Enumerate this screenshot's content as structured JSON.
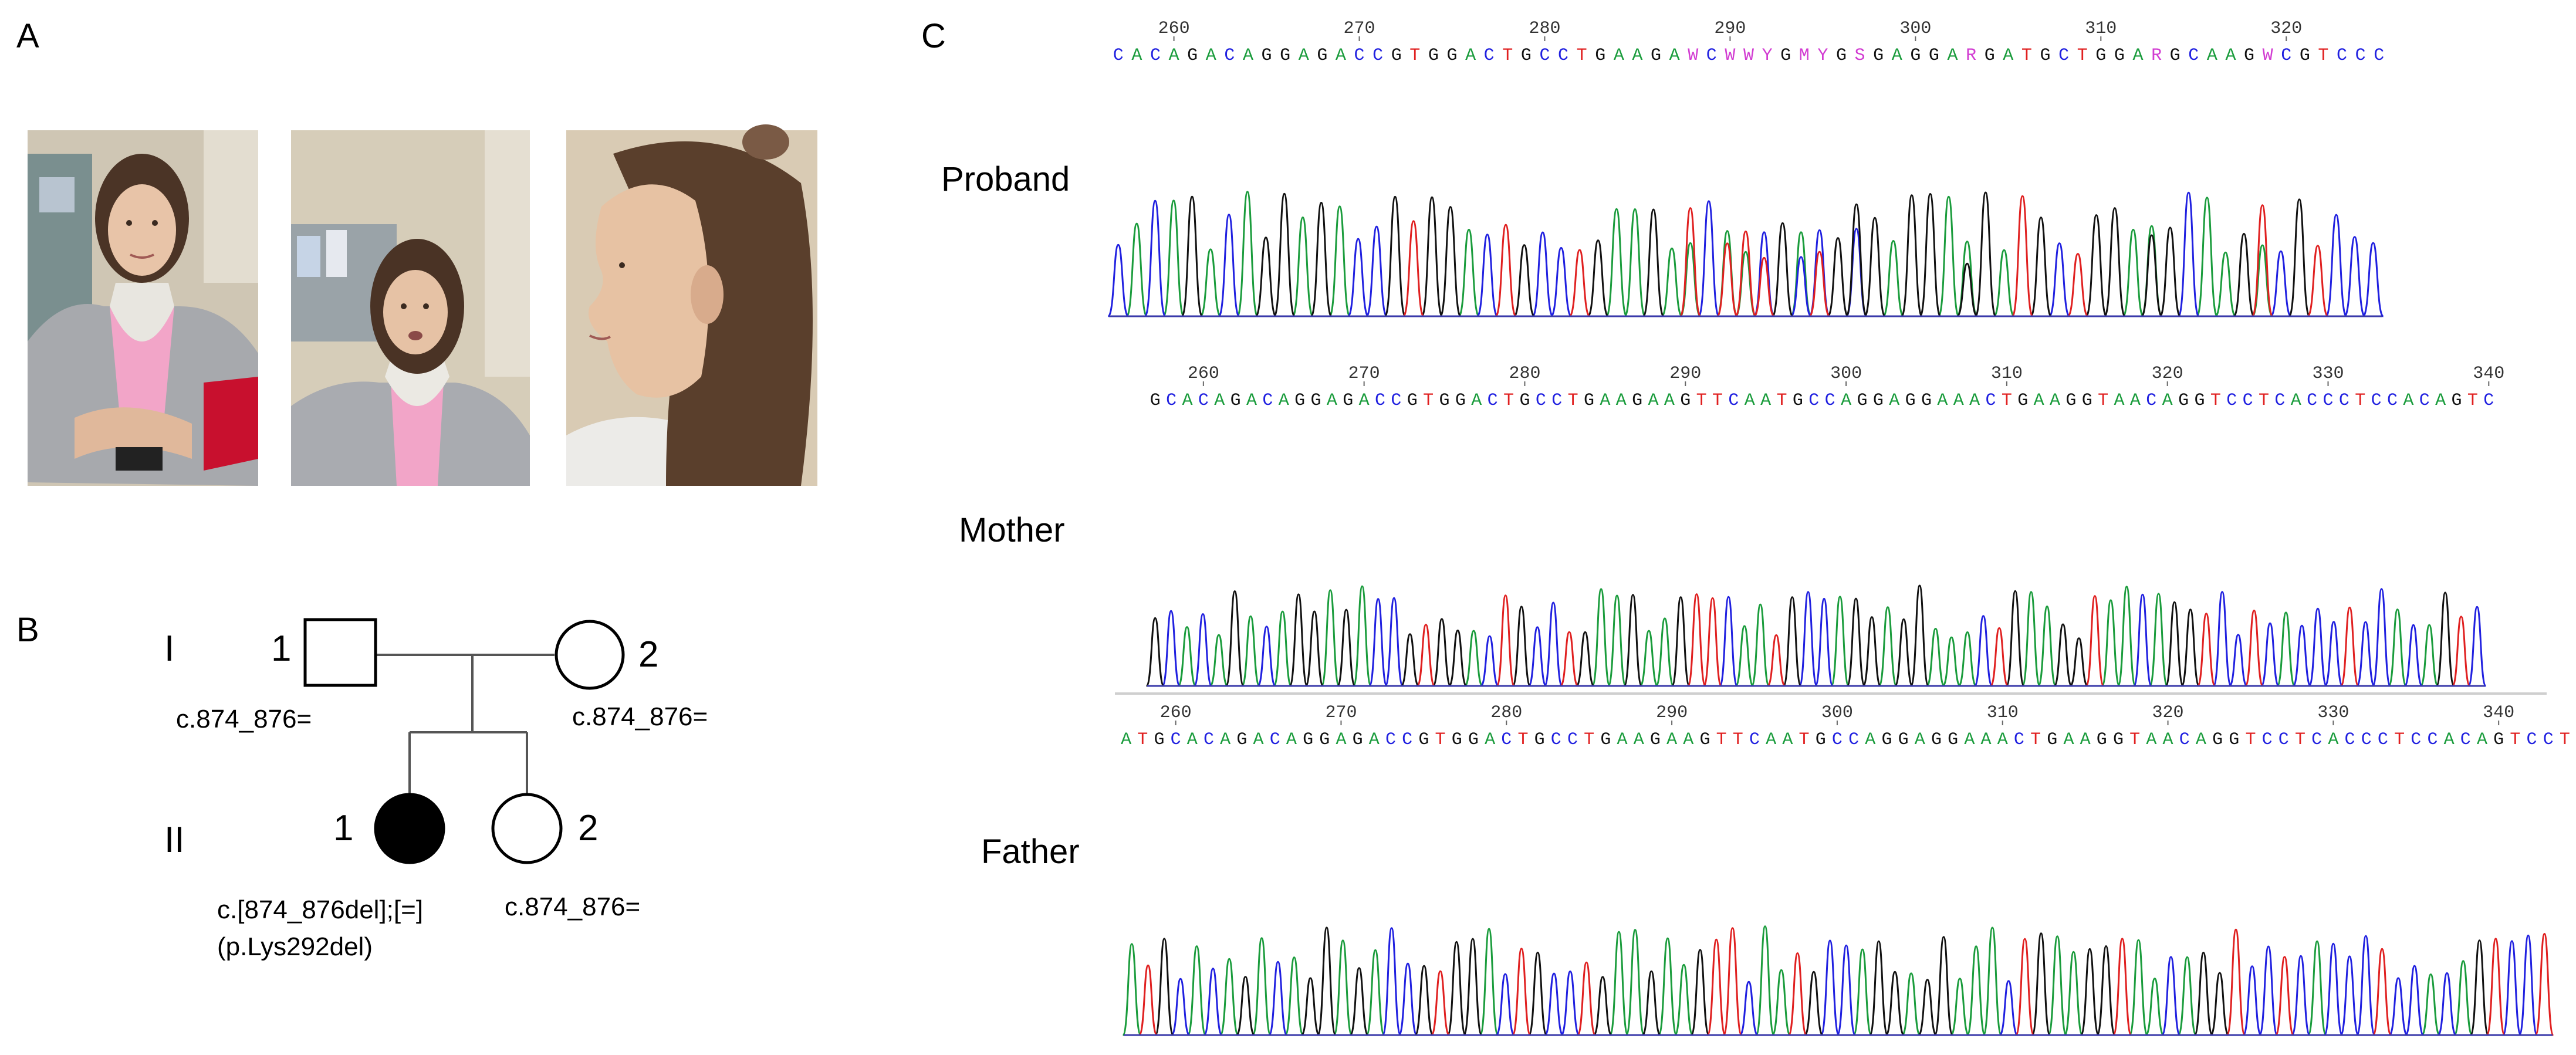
{
  "panels": {
    "a": "A",
    "b": "B",
    "c": "C"
  },
  "pedigree": {
    "generations": [
      "I",
      "II"
    ],
    "members": [
      {
        "gen": "I",
        "num": "1",
        "sex": "male",
        "affected": false,
        "genotype": [
          "c.874_876="
        ]
      },
      {
        "gen": "I",
        "num": "2",
        "sex": "female",
        "affected": false,
        "genotype": [
          "c.874_876="
        ]
      },
      {
        "gen": "II",
        "num": "1",
        "sex": "female",
        "affected": true,
        "genotype": [
          "c.[874_876del];[=]",
          "(p.Lys292del)"
        ]
      },
      {
        "gen": "II",
        "num": "2",
        "sex": "female",
        "affected": false,
        "genotype": [
          "c.874_876="
        ]
      }
    ]
  },
  "chromatograms": [
    {
      "label": "Proband",
      "ticks": [
        "260",
        "270",
        "280",
        "290",
        "300",
        "310",
        "320"
      ],
      "sequence": "CACAGACAGGAGACCGTGGACTGCCTGAAGAWCWWYGMYGSGAGGARGATGCTGGARGCAAGWCGTCCC"
    },
    {
      "label": "Mother",
      "ticks": [
        "260",
        "270",
        "280",
        "290",
        "300",
        "310",
        "320",
        "330",
        "340"
      ],
      "sequence": "GCACAGACAGGAGACCGTGGACTGCCTGAAGAAGTTCAATGCCAGGAGGAAACTGAAGGTAACAGGTCCTCACCCTCCACAGTC"
    },
    {
      "label": "Father",
      "ticks": [
        "260",
        "270",
        "280",
        "290",
        "300",
        "310",
        "320",
        "330",
        "340"
      ],
      "sequence": "ATGCACAGACAGGAGACCGTGGACTGCCTGAAGAAGTTCAATGCCAGGAGGAAACTGAAGGTAACAGGTCCTCACCCTCCACAGTCCT"
    }
  ],
  "colors": {
    "A": "#1a9c3c",
    "C": "#2020e0",
    "G": "#111111",
    "T": "#e02020",
    "ambiguous": "#d23cd2"
  }
}
